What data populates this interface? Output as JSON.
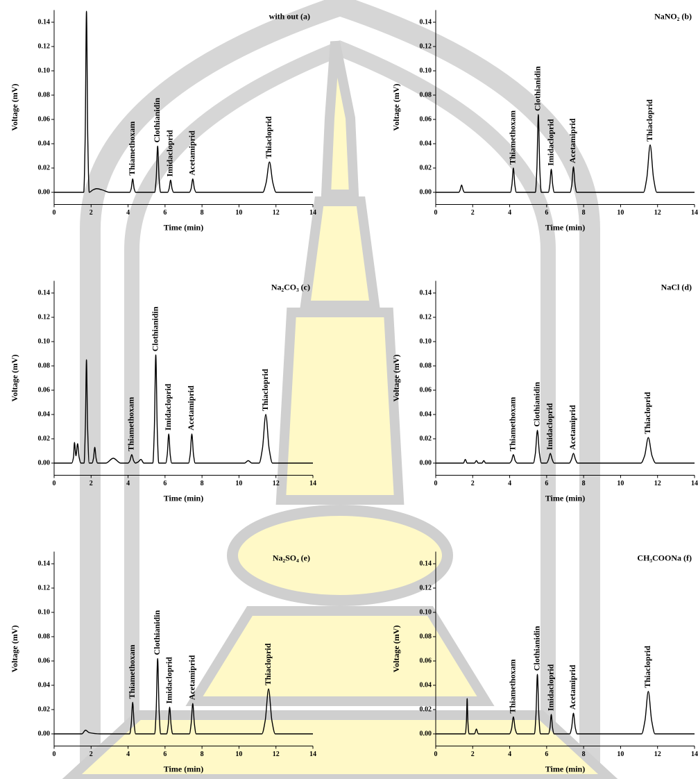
{
  "chart_data": [
    {
      "type": "line",
      "title": "with out (a)",
      "xlabel": "Time (min)",
      "ylabel": "Voltage (mV)",
      "color": "#000000",
      "xlim": [
        0,
        14
      ],
      "ylim": [
        -0.01,
        0.15
      ],
      "xticks": [
        0,
        2,
        4,
        6,
        8,
        10,
        12,
        14
      ],
      "yticks": [
        {
          "value": 0,
          "label": "0.00"
        },
        0.02,
        0.04,
        0.06,
        0.08,
        {
          "value": 0.1,
          "label": "0.10"
        },
        0.12,
        0.14
      ],
      "x": [
        0,
        1.6,
        1.68,
        1.75,
        1.82,
        1.9,
        2.1,
        2.3,
        2.6,
        3.0,
        4.09,
        4.17,
        4.25,
        4.33,
        4.41,
        5.44,
        5.52,
        5.6,
        5.68,
        5.76,
        6.14,
        6.22,
        6.3,
        6.38,
        6.46,
        7.32,
        7.41,
        7.5,
        7.59,
        7.68,
        11.29,
        11.47,
        11.65,
        11.83,
        12.01,
        14
      ],
      "values": [
        0,
        0,
        0.045,
        0.149,
        0.045,
        0,
        0.002,
        0.003,
        0.002,
        0,
        0,
        0.003,
        0.011,
        0.003,
        0,
        0,
        0.011,
        0.038,
        0.011,
        0,
        0,
        0.003,
        0.01,
        0.003,
        0,
        0,
        0.003,
        0.011,
        0.003,
        0,
        0,
        0.008,
        0.025,
        0.008,
        0,
        0
      ],
      "annotations": [
        {
          "text": "Thiamethoxam",
          "x": 4.25,
          "y": 0.011
        },
        {
          "text": "Clothianidin",
          "x": 5.6,
          "y": 0.038
        },
        {
          "text": "Imidacloprid",
          "x": 6.3,
          "y": 0.01
        },
        {
          "text": "Acetamiprid",
          "x": 7.5,
          "y": 0.011
        },
        {
          "text": "Thiacloprid",
          "x": 11.65,
          "y": 0.025
        }
      ]
    },
    {
      "type": "line",
      "title": "NaNO₂ (b)",
      "xlabel": "Time (min)",
      "ylabel": "Voltage (mV)",
      "color": "#000000",
      "xlim": [
        0,
        14
      ],
      "ylim": [
        -0.01,
        0.15
      ],
      "xticks": [
        0,
        2,
        4,
        6,
        8,
        10,
        12,
        14
      ],
      "yticks": [
        {
          "value": 0,
          "label": "0.00"
        },
        0.02,
        0.04,
        0.06,
        0.08,
        {
          "value": 0.1,
          "label": "0.10"
        },
        0.12,
        0.14
      ],
      "x": [
        0,
        1.25,
        1.32,
        1.4,
        1.48,
        1.55,
        4.04,
        4.12,
        4.2,
        4.28,
        4.36,
        5.39,
        5.47,
        5.55,
        5.63,
        5.71,
        6.09,
        6.17,
        6.25,
        6.33,
        6.41,
        7.27,
        7.36,
        7.45,
        7.54,
        7.63,
        11.24,
        11.42,
        11.6,
        11.78,
        11.96,
        14
      ],
      "values": [
        0,
        0,
        0.002,
        0.006,
        0.002,
        0,
        0,
        0.006,
        0.02,
        0.006,
        0,
        0,
        0.019,
        0.064,
        0.019,
        0,
        0,
        0.006,
        0.019,
        0.006,
        0,
        0,
        0.006,
        0.021,
        0.006,
        0,
        0,
        0.012,
        0.039,
        0.012,
        0,
        0
      ],
      "annotations": [
        {
          "text": "Thiamethoxam",
          "x": 4.2,
          "y": 0.02
        },
        {
          "text": "Clothianidin",
          "x": 5.55,
          "y": 0.064
        },
        {
          "text": "Imidacloprid",
          "x": 6.25,
          "y": 0.019
        },
        {
          "text": "Acetamiprid",
          "x": 7.45,
          "y": 0.021
        },
        {
          "text": "Thiacloprid",
          "x": 11.6,
          "y": 0.039
        }
      ]
    },
    {
      "type": "line",
      "title": "Na₂CO₃ (c)",
      "xlabel": "Time (min)",
      "ylabel": "Voltage (mV)",
      "color": "#000000",
      "xlim": [
        0,
        14
      ],
      "ylim": [
        -0.01,
        0.15
      ],
      "xticks": [
        0,
        2,
        4,
        6,
        8,
        10,
        12,
        14
      ],
      "yticks": [
        {
          "value": 0,
          "label": "0.00"
        },
        0.02,
        0.04,
        0.06,
        0.08,
        {
          "value": 0.1,
          "label": "0.10"
        },
        0.12,
        0.14
      ],
      "x": [
        0,
        0.95,
        1.05,
        1.1,
        1.18,
        1.27,
        1.35,
        1.45,
        1.62,
        1.69,
        1.75,
        1.81,
        1.9,
        2.05,
        2.13,
        2.2,
        2.27,
        2.35,
        2.8,
        3.2,
        3.6,
        4.0,
        4.1,
        4.2,
        4.3,
        4.4,
        4.55,
        4.7,
        4.85,
        5.34,
        5.42,
        5.5,
        5.58,
        5.66,
        6.04,
        6.12,
        6.2,
        6.28,
        6.36,
        7.27,
        7.36,
        7.45,
        7.54,
        7.63,
        10.3,
        10.5,
        10.7,
        11.09,
        11.27,
        11.45,
        11.63,
        11.81,
        14
      ],
      "values": [
        0,
        0,
        0.005,
        0.017,
        0.006,
        0.016,
        0.005,
        0,
        0,
        0.03,
        0.085,
        0.03,
        0,
        0,
        0.004,
        0.013,
        0.004,
        0,
        0,
        0.004,
        0,
        0,
        0.002,
        0.007,
        0.002,
        0,
        0.001,
        0.003,
        0,
        0,
        0.027,
        0.089,
        0.027,
        0,
        0,
        0.007,
        0.024,
        0.007,
        0,
        0,
        0.007,
        0.024,
        0.007,
        0,
        0,
        0.002,
        0,
        0,
        0.012,
        0.04,
        0.012,
        0,
        0
      ],
      "annotations": [
        {
          "text": "Thiamethoxam",
          "x": 4.2,
          "y": 0.007
        },
        {
          "text": "Clothianidin",
          "x": 5.5,
          "y": 0.089
        },
        {
          "text": "Imidacloprid",
          "x": 6.2,
          "y": 0.024
        },
        {
          "text": "Acetamiprid",
          "x": 7.45,
          "y": 0.024
        },
        {
          "text": "Thiacloprid",
          "x": 11.45,
          "y": 0.04
        }
      ]
    },
    {
      "type": "line",
      "title": "NaCl (d)",
      "xlabel": "Time (min)",
      "ylabel": "Voltage (mV)",
      "color": "#000000",
      "xlim": [
        0,
        14
      ],
      "ylim": [
        -0.01,
        0.15
      ],
      "xticks": [
        0,
        2,
        4,
        6,
        8,
        10,
        12,
        14
      ],
      "yticks": [
        {
          "value": 0,
          "label": "0.00"
        },
        0.02,
        0.04,
        0.06,
        0.08,
        {
          "value": 0.1,
          "label": "0.10"
        },
        0.12,
        0.14
      ],
      "x": [
        0,
        1.5,
        1.6,
        1.7,
        2.1,
        2.2,
        2.3,
        2.5,
        2.6,
        2.7,
        3.99,
        4.1,
        4.2,
        4.3,
        4.41,
        5.28,
        5.39,
        5.5,
        5.61,
        5.72,
        6.0,
        6.1,
        6.2,
        6.3,
        6.4,
        7.23,
        7.34,
        7.45,
        7.56,
        7.67,
        11.1,
        11.3,
        11.5,
        11.7,
        11.9,
        14
      ],
      "values": [
        0,
        0,
        0.003,
        0,
        0,
        0.002,
        0,
        0,
        0.002,
        0,
        0,
        0.002,
        0.007,
        0.002,
        0,
        0,
        0.008,
        0.027,
        0.008,
        0,
        0,
        0.003,
        0.008,
        0.003,
        0,
        0,
        0.003,
        0.008,
        0.003,
        0,
        0,
        0.006,
        0.021,
        0.006,
        0,
        0
      ],
      "annotations": [
        {
          "text": "Thiamethoxam",
          "x": 4.2,
          "y": 0.007
        },
        {
          "text": "Clothianidin",
          "x": 5.5,
          "y": 0.027
        },
        {
          "text": "Imidacloprid",
          "x": 6.2,
          "y": 0.008
        },
        {
          "text": "Acetamiprid",
          "x": 7.45,
          "y": 0.008
        },
        {
          "text": "Thiacloprid",
          "x": 11.5,
          "y": 0.021
        }
      ]
    },
    {
      "type": "line",
      "title": "Na₂SO₄ (e)",
      "xlabel": "Time (min)",
      "ylabel": "Voltage (mV)",
      "color": "#000000",
      "xlim": [
        0,
        14
      ],
      "ylim": [
        -0.01,
        0.15
      ],
      "xticks": [
        0,
        2,
        4,
        6,
        8,
        10,
        12,
        14
      ],
      "yticks": [
        {
          "value": 0,
          "label": "0.00"
        },
        0.02,
        0.04,
        0.06,
        0.08,
        {
          "value": 0.1,
          "label": "0.10"
        },
        0.12,
        0.14
      ],
      "x": [
        0,
        1.5,
        1.7,
        1.9,
        2.5,
        4.09,
        4.17,
        4.25,
        4.33,
        4.41,
        5.44,
        5.52,
        5.6,
        5.68,
        5.76,
        6.09,
        6.17,
        6.25,
        6.33,
        6.41,
        7.32,
        7.41,
        7.5,
        7.59,
        7.68,
        11.24,
        11.42,
        11.6,
        11.78,
        11.96,
        14
      ],
      "values": [
        0,
        0,
        0.003,
        0.001,
        0,
        0,
        0.008,
        0.026,
        0.008,
        0,
        0,
        0.019,
        0.062,
        0.019,
        0,
        0,
        0.007,
        0.022,
        0.007,
        0,
        0,
        0.008,
        0.025,
        0.008,
        0,
        0,
        0.011,
        0.037,
        0.011,
        0,
        0
      ],
      "annotations": [
        {
          "text": "Thiamethoxam",
          "x": 4.25,
          "y": 0.026
        },
        {
          "text": "Clothianidin",
          "x": 5.6,
          "y": 0.062
        },
        {
          "text": "Imidacloprid",
          "x": 6.25,
          "y": 0.022
        },
        {
          "text": "Acetamiprid",
          "x": 7.5,
          "y": 0.025
        },
        {
          "text": "Thiacloprid",
          "x": 11.6,
          "y": 0.037
        }
      ]
    },
    {
      "type": "line",
      "title": "CH₃COONa (f)",
      "xlabel": "Time (min)",
      "ylabel": "Voltage (mV)",
      "color": "#000000",
      "xlim": [
        0,
        14
      ],
      "ylim": [
        -0.01,
        0.15
      ],
      "xticks": [
        0,
        2,
        4,
        6,
        8,
        10,
        12,
        14
      ],
      "yticks": [
        {
          "value": 0,
          "label": "0.00"
        },
        0.02,
        0.04,
        0.06,
        0.08,
        {
          "value": 0.1,
          "label": "0.10"
        },
        0.12,
        0.14
      ],
      "x": [
        0,
        1.6,
        1.66,
        1.7,
        1.74,
        1.8,
        2.1,
        2.2,
        2.3,
        3.99,
        4.1,
        4.2,
        4.3,
        4.41,
        5.34,
        5.42,
        5.5,
        5.58,
        5.66,
        6.1,
        6.18,
        6.25,
        6.32,
        6.4,
        7.25,
        7.35,
        7.45,
        7.55,
        7.65,
        11.14,
        11.32,
        11.5,
        11.68,
        11.86,
        14
      ],
      "values": [
        0,
        0,
        0.01,
        0.029,
        0.01,
        0,
        0,
        0.004,
        0,
        0,
        0.004,
        0.014,
        0.004,
        0,
        0,
        0.015,
        0.049,
        0.015,
        0,
        0,
        0.005,
        0.016,
        0.005,
        0,
        0,
        0.005,
        0.017,
        0.005,
        0,
        0,
        0.011,
        0.035,
        0.011,
        0,
        0
      ],
      "annotations": [
        {
          "text": "Thiamethoxam",
          "x": 4.2,
          "y": 0.014
        },
        {
          "text": "Clothianidin",
          "x": 5.5,
          "y": 0.049
        },
        {
          "text": "Imidacloprid",
          "x": 6.25,
          "y": 0.016
        },
        {
          "text": "Acetamiprid",
          "x": 7.45,
          "y": 0.017
        },
        {
          "text": "Thiacloprid",
          "x": 11.5,
          "y": 0.035
        }
      ]
    }
  ]
}
